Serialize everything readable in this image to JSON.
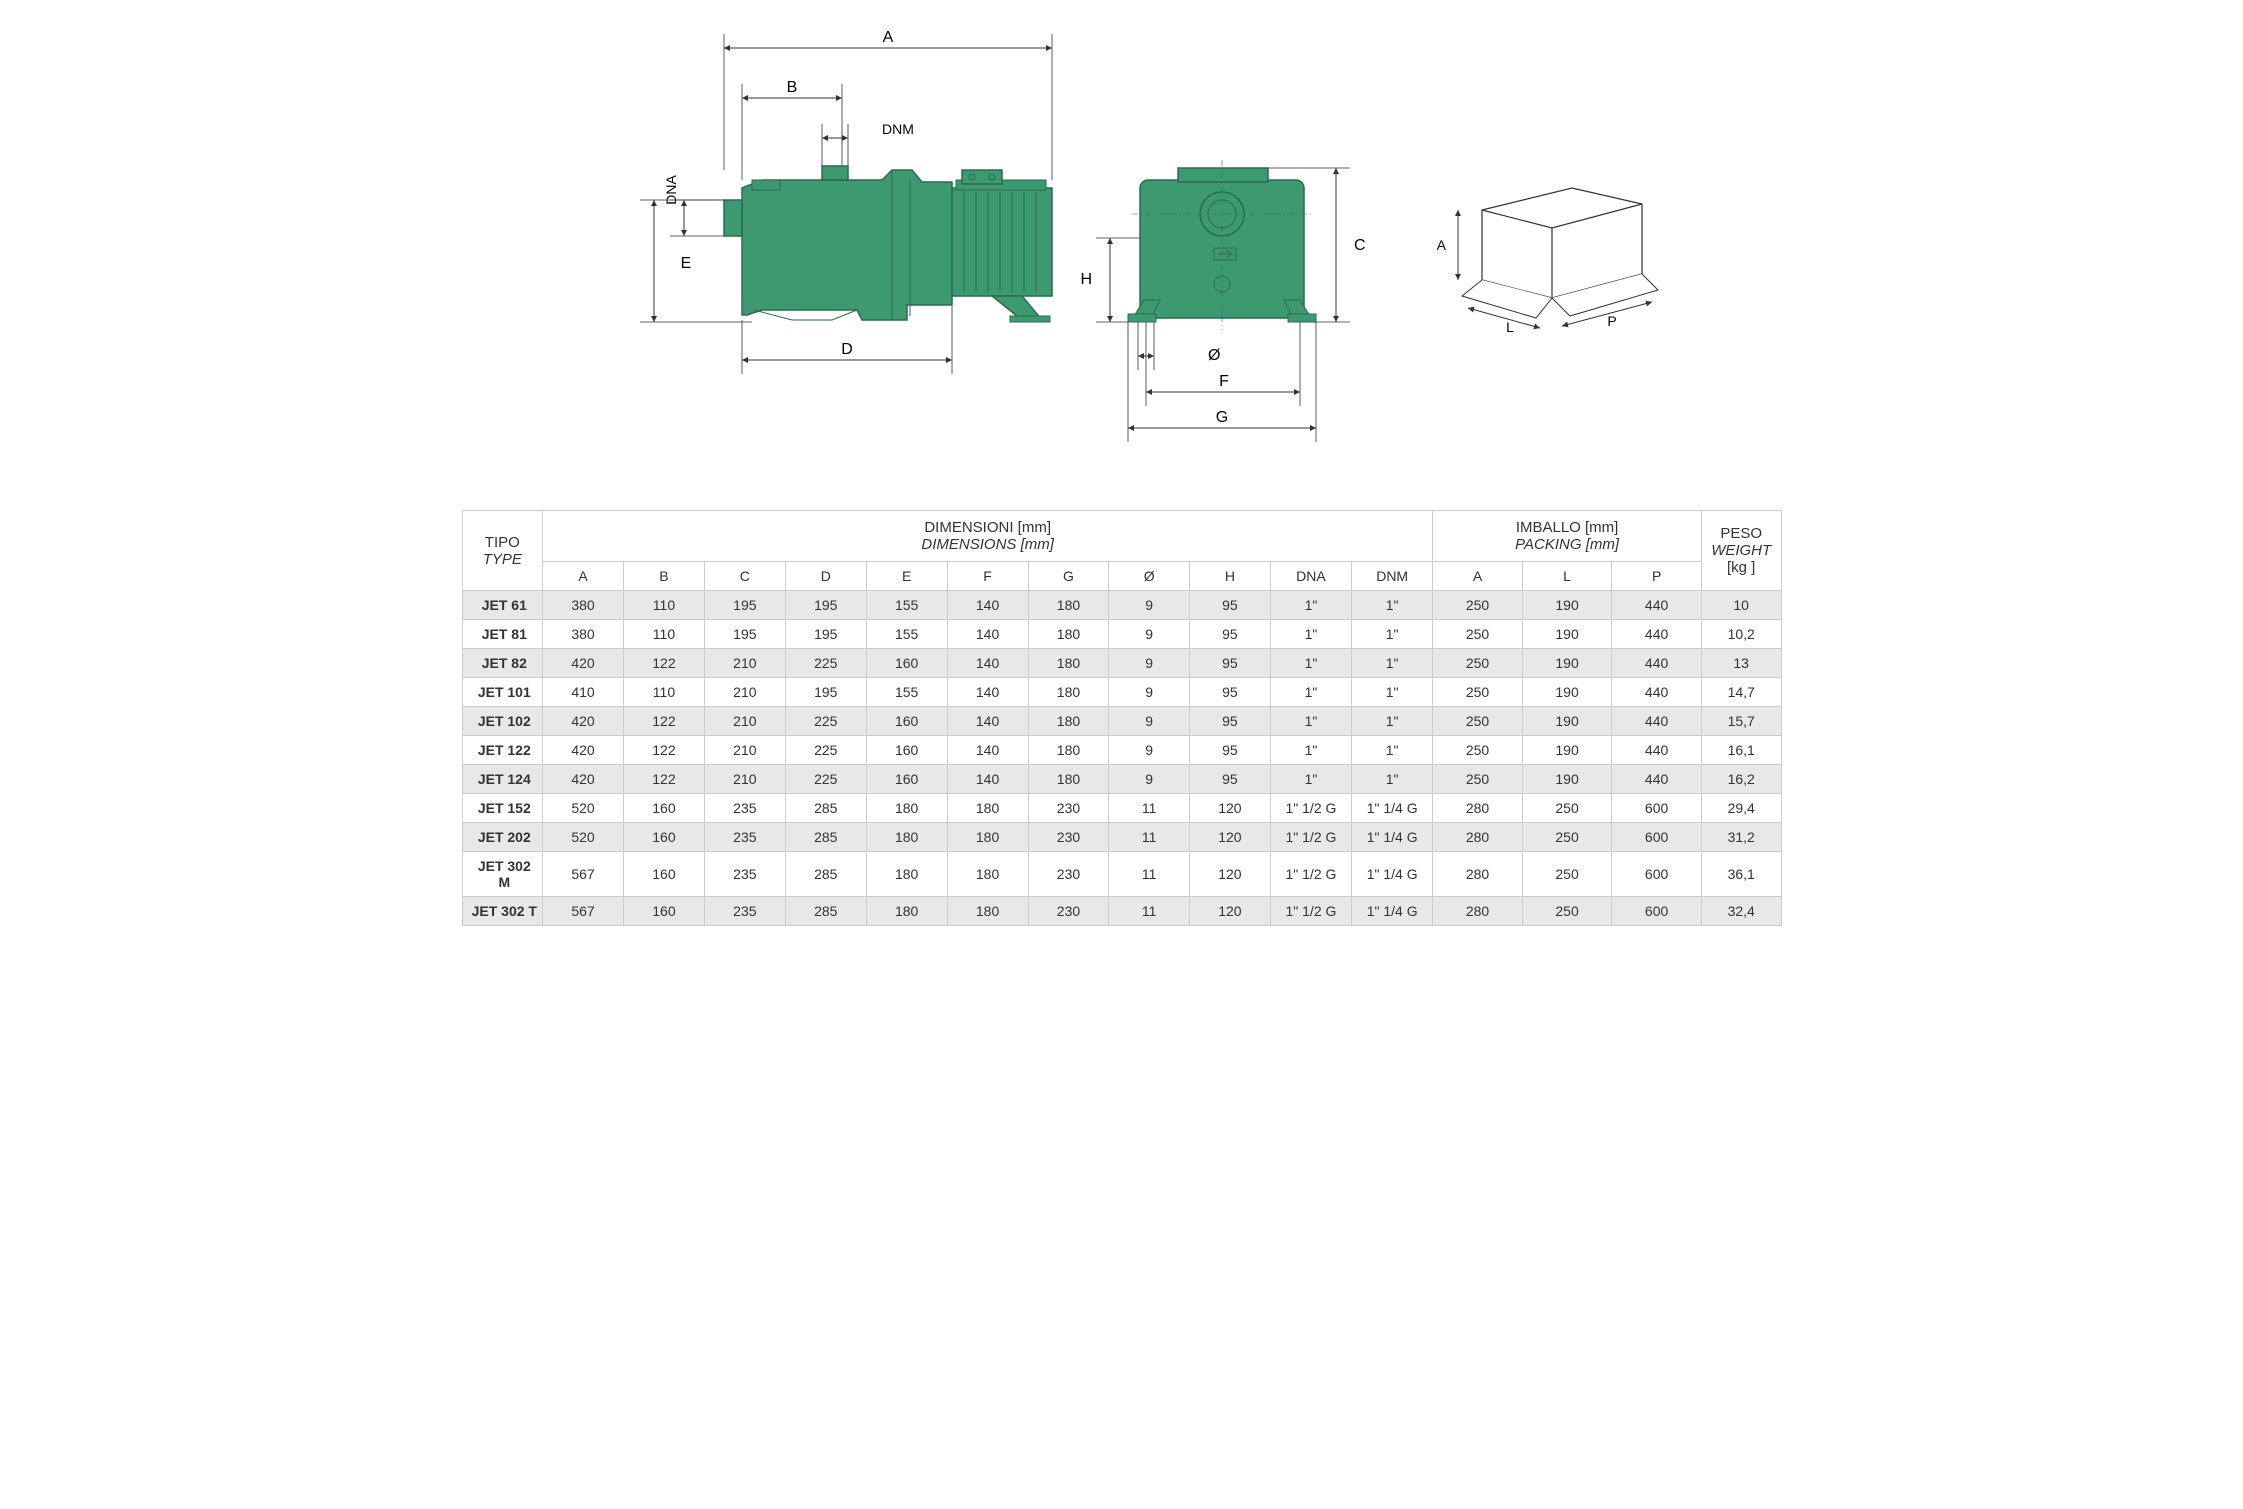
{
  "colors": {
    "pump_fill": "#3d9970",
    "pump_stroke": "#2a6b4e",
    "dim_line": "#333333",
    "box_fill": "#ffffff",
    "box_stroke": "#333333",
    "table_border": "#cccccc",
    "shaded_row": "#e8e8e8",
    "text": "#333333"
  },
  "diagram": {
    "left_view": {
      "labels": {
        "A": "A",
        "B": "B",
        "DNM": "DNM",
        "DNA": "DNA",
        "E": "E",
        "D": "D"
      }
    },
    "front_view": {
      "labels": {
        "C": "C",
        "H": "H",
        "O": "Ø",
        "F": "F",
        "G": "G"
      }
    },
    "box_view": {
      "labels": {
        "A": "A",
        "L": "L",
        "P": "P"
      }
    }
  },
  "table": {
    "header_tipo": "TIPO",
    "header_type": "TYPE",
    "header_dimensioni": "DIMENSIONI [mm]",
    "header_dimensions": "DIMENSIONS [mm]",
    "header_imballo": "IMBALLO [mm]",
    "header_packing": "PACKING [mm]",
    "header_peso": "PESO",
    "header_weight": "WEIGHT",
    "header_kg": "[kg ]",
    "dim_cols": [
      "A",
      "B",
      "C",
      "D",
      "E",
      "F",
      "G",
      "Ø",
      "H",
      "DNA",
      "DNM"
    ],
    "pack_cols": [
      "A",
      "L",
      "P"
    ],
    "rows": [
      {
        "type": "JET 61",
        "d": [
          "380",
          "110",
          "195",
          "195",
          "155",
          "140",
          "180",
          "9",
          "95",
          "1\"",
          "1\""
        ],
        "p": [
          "250",
          "190",
          "440"
        ],
        "w": "10",
        "shaded": true
      },
      {
        "type": "JET 81",
        "d": [
          "380",
          "110",
          "195",
          "195",
          "155",
          "140",
          "180",
          "9",
          "95",
          "1\"",
          "1\""
        ],
        "p": [
          "250",
          "190",
          "440"
        ],
        "w": "10,2",
        "shaded": false
      },
      {
        "type": "JET 82",
        "d": [
          "420",
          "122",
          "210",
          "225",
          "160",
          "140",
          "180",
          "9",
          "95",
          "1\"",
          "1\""
        ],
        "p": [
          "250",
          "190",
          "440"
        ],
        "w": "13",
        "shaded": true
      },
      {
        "type": "JET 101",
        "d": [
          "410",
          "110",
          "210",
          "195",
          "155",
          "140",
          "180",
          "9",
          "95",
          "1\"",
          "1\""
        ],
        "p": [
          "250",
          "190",
          "440"
        ],
        "w": "14,7",
        "shaded": false
      },
      {
        "type": "JET 102",
        "d": [
          "420",
          "122",
          "210",
          "225",
          "160",
          "140",
          "180",
          "9",
          "95",
          "1\"",
          "1\""
        ],
        "p": [
          "250",
          "190",
          "440"
        ],
        "w": "15,7",
        "shaded": true
      },
      {
        "type": "JET 122",
        "d": [
          "420",
          "122",
          "210",
          "225",
          "160",
          "140",
          "180",
          "9",
          "95",
          "1\"",
          "1\""
        ],
        "p": [
          "250",
          "190",
          "440"
        ],
        "w": "16,1",
        "shaded": false
      },
      {
        "type": "JET 124",
        "d": [
          "420",
          "122",
          "210",
          "225",
          "160",
          "140",
          "180",
          "9",
          "95",
          "1\"",
          "1\""
        ],
        "p": [
          "250",
          "190",
          "440"
        ],
        "w": "16,2",
        "shaded": true
      },
      {
        "type": "JET 152",
        "d": [
          "520",
          "160",
          "235",
          "285",
          "180",
          "180",
          "230",
          "11",
          "120",
          "1\" 1/2 G",
          "1\" 1/4 G"
        ],
        "p": [
          "280",
          "250",
          "600"
        ],
        "w": "29,4",
        "shaded": false
      },
      {
        "type": "JET 202",
        "d": [
          "520",
          "160",
          "235",
          "285",
          "180",
          "180",
          "230",
          "11",
          "120",
          "1\" 1/2 G",
          "1\" 1/4 G"
        ],
        "p": [
          "280",
          "250",
          "600"
        ],
        "w": "31,2",
        "shaded": true
      },
      {
        "type": "JET 302 M",
        "d": [
          "567",
          "160",
          "235",
          "285",
          "180",
          "180",
          "230",
          "11",
          "120",
          "1\" 1/2 G",
          "1\" 1/4 G"
        ],
        "p": [
          "280",
          "250",
          "600"
        ],
        "w": "36,1",
        "shaded": false
      },
      {
        "type": "JET 302 T",
        "d": [
          "567",
          "160",
          "235",
          "285",
          "180",
          "180",
          "230",
          "11",
          "120",
          "1\" 1/2 G",
          "1\" 1/4 G"
        ],
        "p": [
          "280",
          "250",
          "600"
        ],
        "w": "32,4",
        "shaded": true
      }
    ]
  },
  "style": {
    "arrow_size": 6,
    "line_width": 1,
    "pump_line_width": 1.5,
    "font_size_dim": 14,
    "font_size_table": 14
  }
}
